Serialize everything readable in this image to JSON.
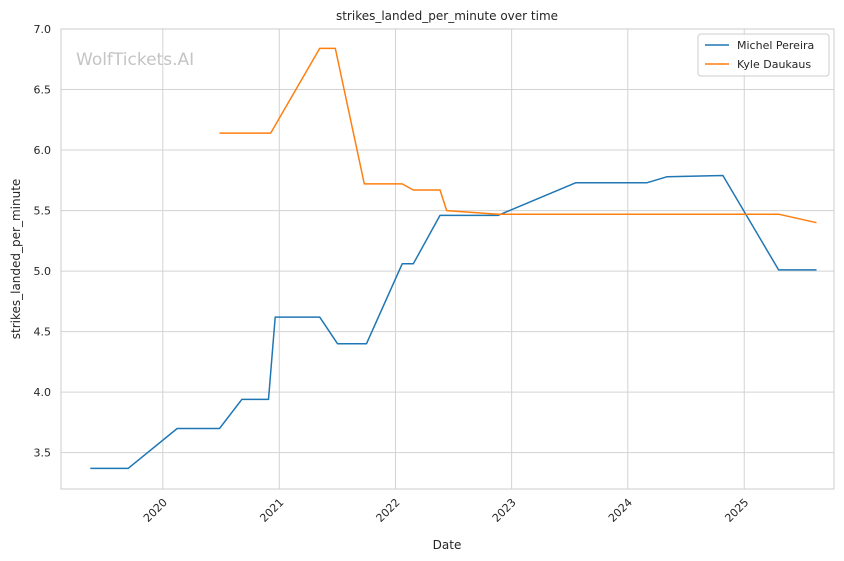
{
  "watermark": "WolfTickets.AI",
  "chart_data": {
    "type": "line",
    "title": "strikes_landed_per_minute over time",
    "xlabel": "Date",
    "ylabel": "strikes_landed_per_minute",
    "x_axis_type": "date",
    "xlim": [
      "2019-02-15",
      "2025-10-10"
    ],
    "ylim": [
      3.2,
      7.0
    ],
    "x_ticks": [
      "2020-01-01",
      "2021-01-01",
      "2022-01-01",
      "2023-01-01",
      "2024-01-01",
      "2025-01-01"
    ],
    "x_tick_labels": [
      "2020",
      "2021",
      "2022",
      "2023",
      "2024",
      "2025"
    ],
    "y_ticks": [
      3.5,
      4.0,
      4.5,
      5.0,
      5.5,
      6.0,
      6.5,
      7.0
    ],
    "y_tick_labels": [
      "3.5",
      "4.0",
      "4.5",
      "5.0",
      "5.5",
      "6.0",
      "6.5",
      "7.0"
    ],
    "grid": true,
    "legend_position": "top-right",
    "series": [
      {
        "name": "Michel Pereira",
        "color": "#1f77b4",
        "points": [
          [
            "2019-05-18",
            3.37
          ],
          [
            "2019-09-14",
            3.37
          ],
          [
            "2020-02-15",
            3.7
          ],
          [
            "2020-06-27",
            3.7
          ],
          [
            "2020-09-05",
            3.94
          ],
          [
            "2020-11-28",
            3.94
          ],
          [
            "2020-12-19",
            4.62
          ],
          [
            "2021-05-08",
            4.62
          ],
          [
            "2021-07-03",
            4.4
          ],
          [
            "2021-10-02",
            4.4
          ],
          [
            "2022-01-22",
            5.06
          ],
          [
            "2022-02-26",
            5.06
          ],
          [
            "2022-05-21",
            5.46
          ],
          [
            "2022-11-19",
            5.46
          ],
          [
            "2023-07-22",
            5.73
          ],
          [
            "2024-03-02",
            5.73
          ],
          [
            "2024-05-04",
            5.78
          ],
          [
            "2024-10-26",
            5.79
          ],
          [
            "2025-04-19",
            5.01
          ],
          [
            "2025-08-16",
            5.01
          ]
        ]
      },
      {
        "name": "Kyle Daukaus",
        "color": "#ff7f0e",
        "points": [
          [
            "2020-06-27",
            6.14
          ],
          [
            "2020-12-05",
            6.14
          ],
          [
            "2021-05-08",
            6.84
          ],
          [
            "2021-06-26",
            6.84
          ],
          [
            "2021-09-25",
            5.72
          ],
          [
            "2022-01-22",
            5.72
          ],
          [
            "2022-02-26",
            5.67
          ],
          [
            "2022-05-21",
            5.67
          ],
          [
            "2022-06-11",
            5.5
          ],
          [
            "2022-11-19",
            5.47
          ],
          [
            "2023-01-01",
            5.47
          ],
          [
            "2025-04-19",
            5.47
          ],
          [
            "2025-08-16",
            5.4
          ]
        ]
      }
    ]
  }
}
